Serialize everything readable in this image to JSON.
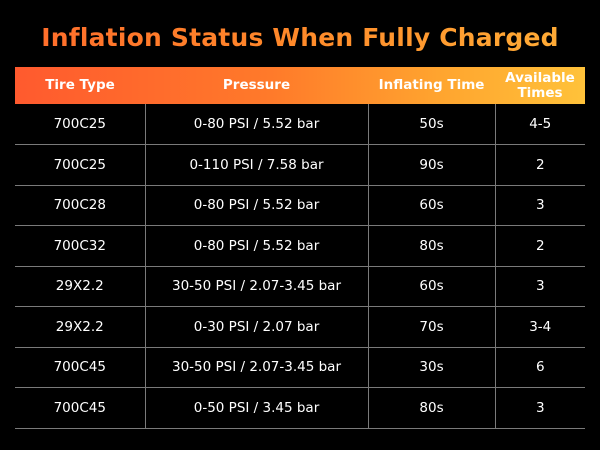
{
  "title": "Inflation Status When Fully Charged",
  "table": {
    "headers": [
      "Tire Type",
      "Pressure",
      "Inflating Time",
      "Available Times"
    ],
    "rows": [
      [
        "700C25",
        "0-80 PSI / 5.52 bar",
        "50s",
        "4-5"
      ],
      [
        "700C25",
        "0-110 PSI / 7.58 bar",
        "90s",
        "2"
      ],
      [
        "700C28",
        "0-80 PSI / 5.52 bar",
        "60s",
        "3"
      ],
      [
        "700C32",
        "0-80 PSI / 5.52 bar",
        "80s",
        "2"
      ],
      [
        "29X2.2",
        "30-50 PSI / 2.07-3.45 bar",
        "60s",
        "3"
      ],
      [
        "29X2.2",
        "0-30 PSI / 2.07 bar",
        "70s",
        "3-4"
      ],
      [
        "700C45",
        "30-50 PSI / 2.07-3.45 bar",
        "30s",
        "6"
      ],
      [
        "700C45",
        "0-50 PSI / 3.45 bar",
        "80s",
        "3"
      ]
    ]
  },
  "colors": {
    "background": "#000000",
    "title_gradient_start": "#ff6a2b",
    "title_gradient_end": "#ffb037",
    "header_gradient_start": "#ff5a2e",
    "header_gradient_end": "#ffc23a",
    "grid_line": "#7a7a7a",
    "text": "#ffffff"
  }
}
